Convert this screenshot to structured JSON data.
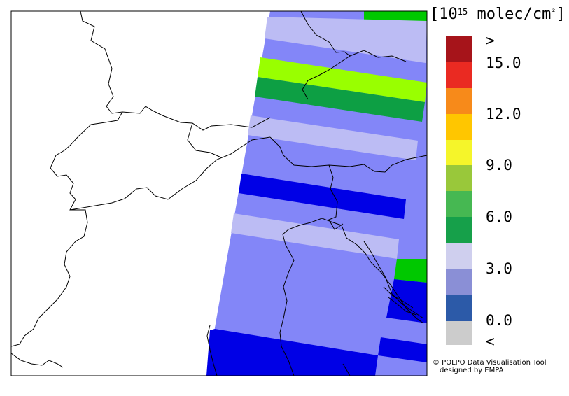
{
  "unit": {
    "open": "[",
    "prefix": "10",
    "exponent": "15",
    "text": " molec/cm",
    "sq": "²",
    "close": "]"
  },
  "colorbar": {
    "levels": [
      {
        "label": "<",
        "color": "#cccccc"
      },
      {
        "label": "0.0",
        "color": "#2c5aa8"
      },
      {
        "label": "",
        "color": "#8a8fd6"
      },
      {
        "label": "3.0",
        "color": "#cfcfee"
      },
      {
        "label": "",
        "color": "#16a04a"
      },
      {
        "label": "6.0",
        "color": "#46b852"
      },
      {
        "label": "",
        "color": "#99c83a"
      },
      {
        "label": "9.0",
        "color": "#f5f52a"
      },
      {
        "label": "",
        "color": "#ffc600"
      },
      {
        "label": "12.0",
        "color": "#f78a1a"
      },
      {
        "label": "",
        "color": "#ea2a22"
      },
      {
        "label": "15.0",
        "color": "#a6141a"
      },
      {
        "label": ">",
        "color": ""
      }
    ]
  },
  "map_colors": {
    "background": "#8386f8",
    "light": "#bcbcf4",
    "dark": "#0000e6",
    "green_mid": "#0d9f44",
    "green_bright": "#00c800",
    "lime": "#99ff00",
    "border": "#000000"
  },
  "credit": {
    "line1": "© POLPO Data Visualisation Tool",
    "line2": "designed by EMPA"
  }
}
